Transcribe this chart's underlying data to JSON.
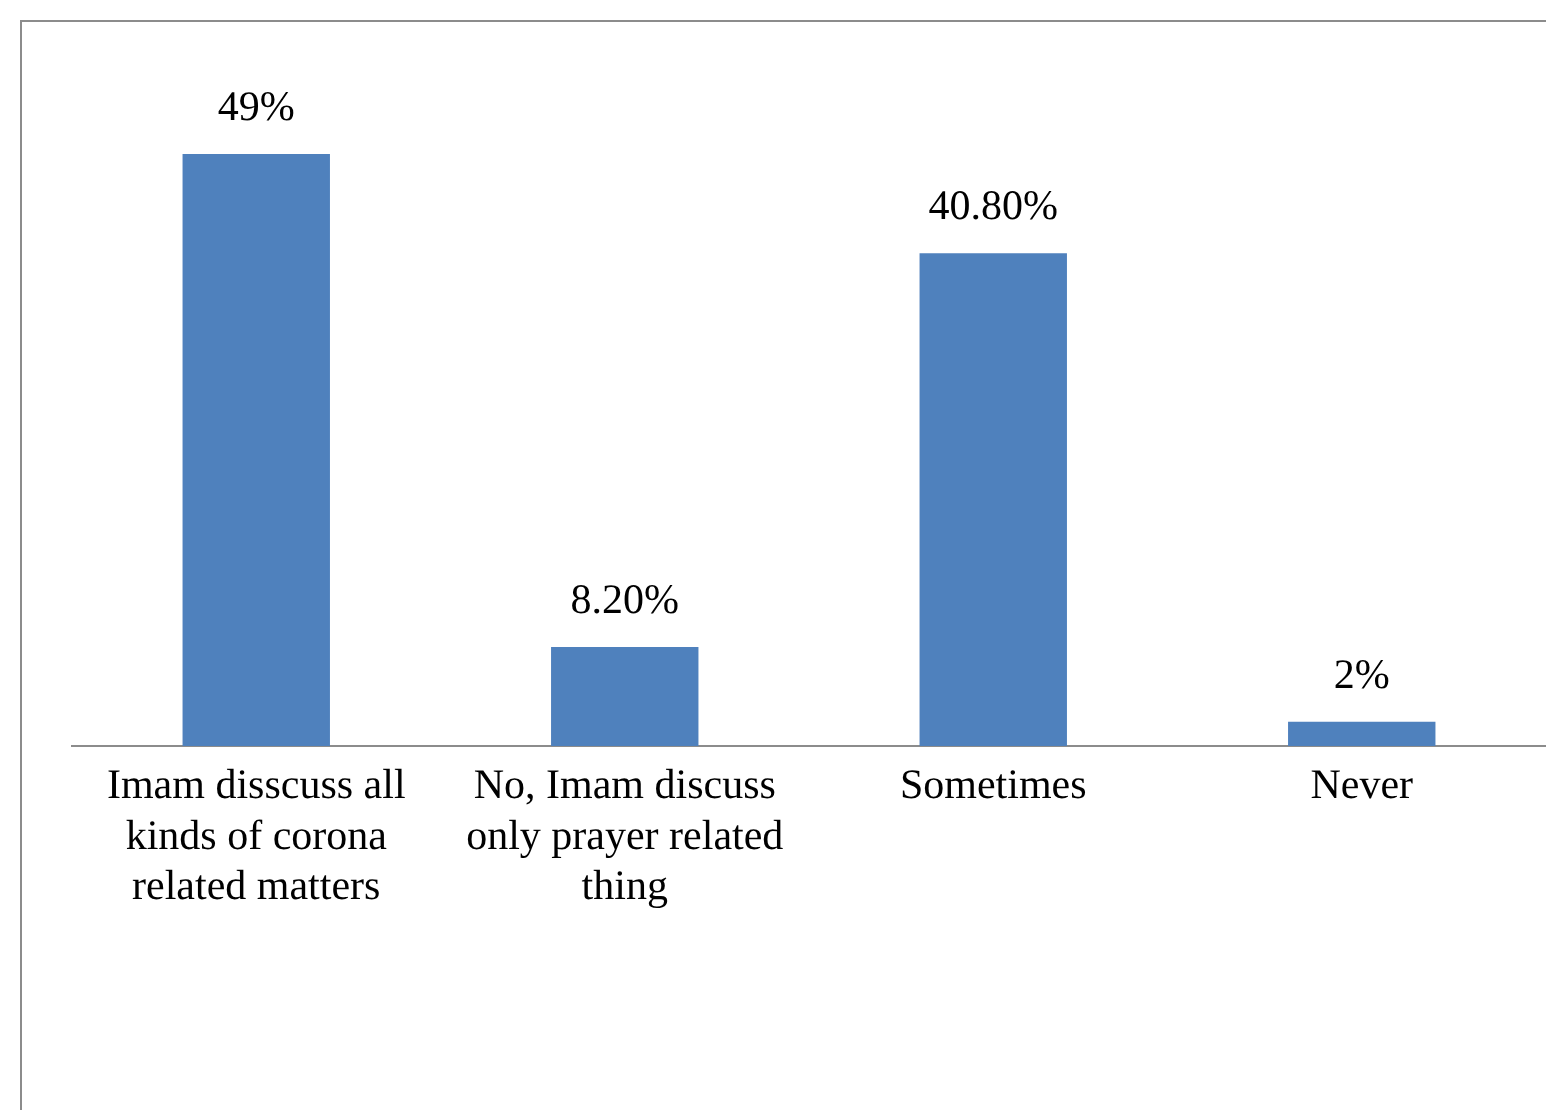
{
  "chart_data": {
    "type": "bar",
    "categories": [
      "Imam disscuss all kinds of corona related matters",
      "No, Imam discuss only prayer related thing",
      "Sometimes",
      "Never"
    ],
    "values": [
      49,
      8.2,
      40.8,
      2
    ],
    "value_labels": [
      "49%",
      "8.20%",
      "40.80%",
      "2%"
    ],
    "color": "#4f81bd",
    "grid": false,
    "legend": false
  }
}
